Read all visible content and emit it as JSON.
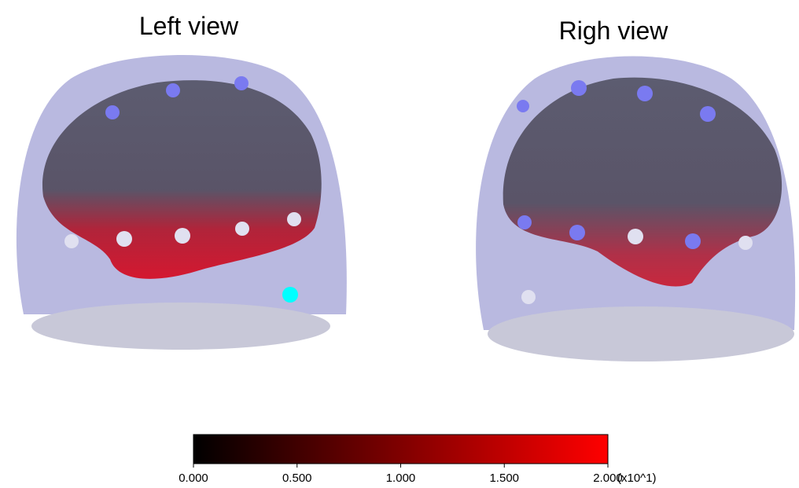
{
  "panels": [
    {
      "title": "Left view"
    },
    {
      "title": "Righ view"
    }
  ],
  "colorbar": {
    "range": [
      0,
      2
    ],
    "colors": [
      "#000000",
      "#ff0000"
    ],
    "ticks": [
      {
        "value": 0,
        "label": "0.000"
      },
      {
        "value": 0.5,
        "label": "0.500"
      },
      {
        "value": 1,
        "label": "1.000"
      },
      {
        "value": 1.5,
        "label": "1.500"
      },
      {
        "value": 2,
        "label": "2.000"
      }
    ],
    "unit_label": "(x10^1)"
  }
}
